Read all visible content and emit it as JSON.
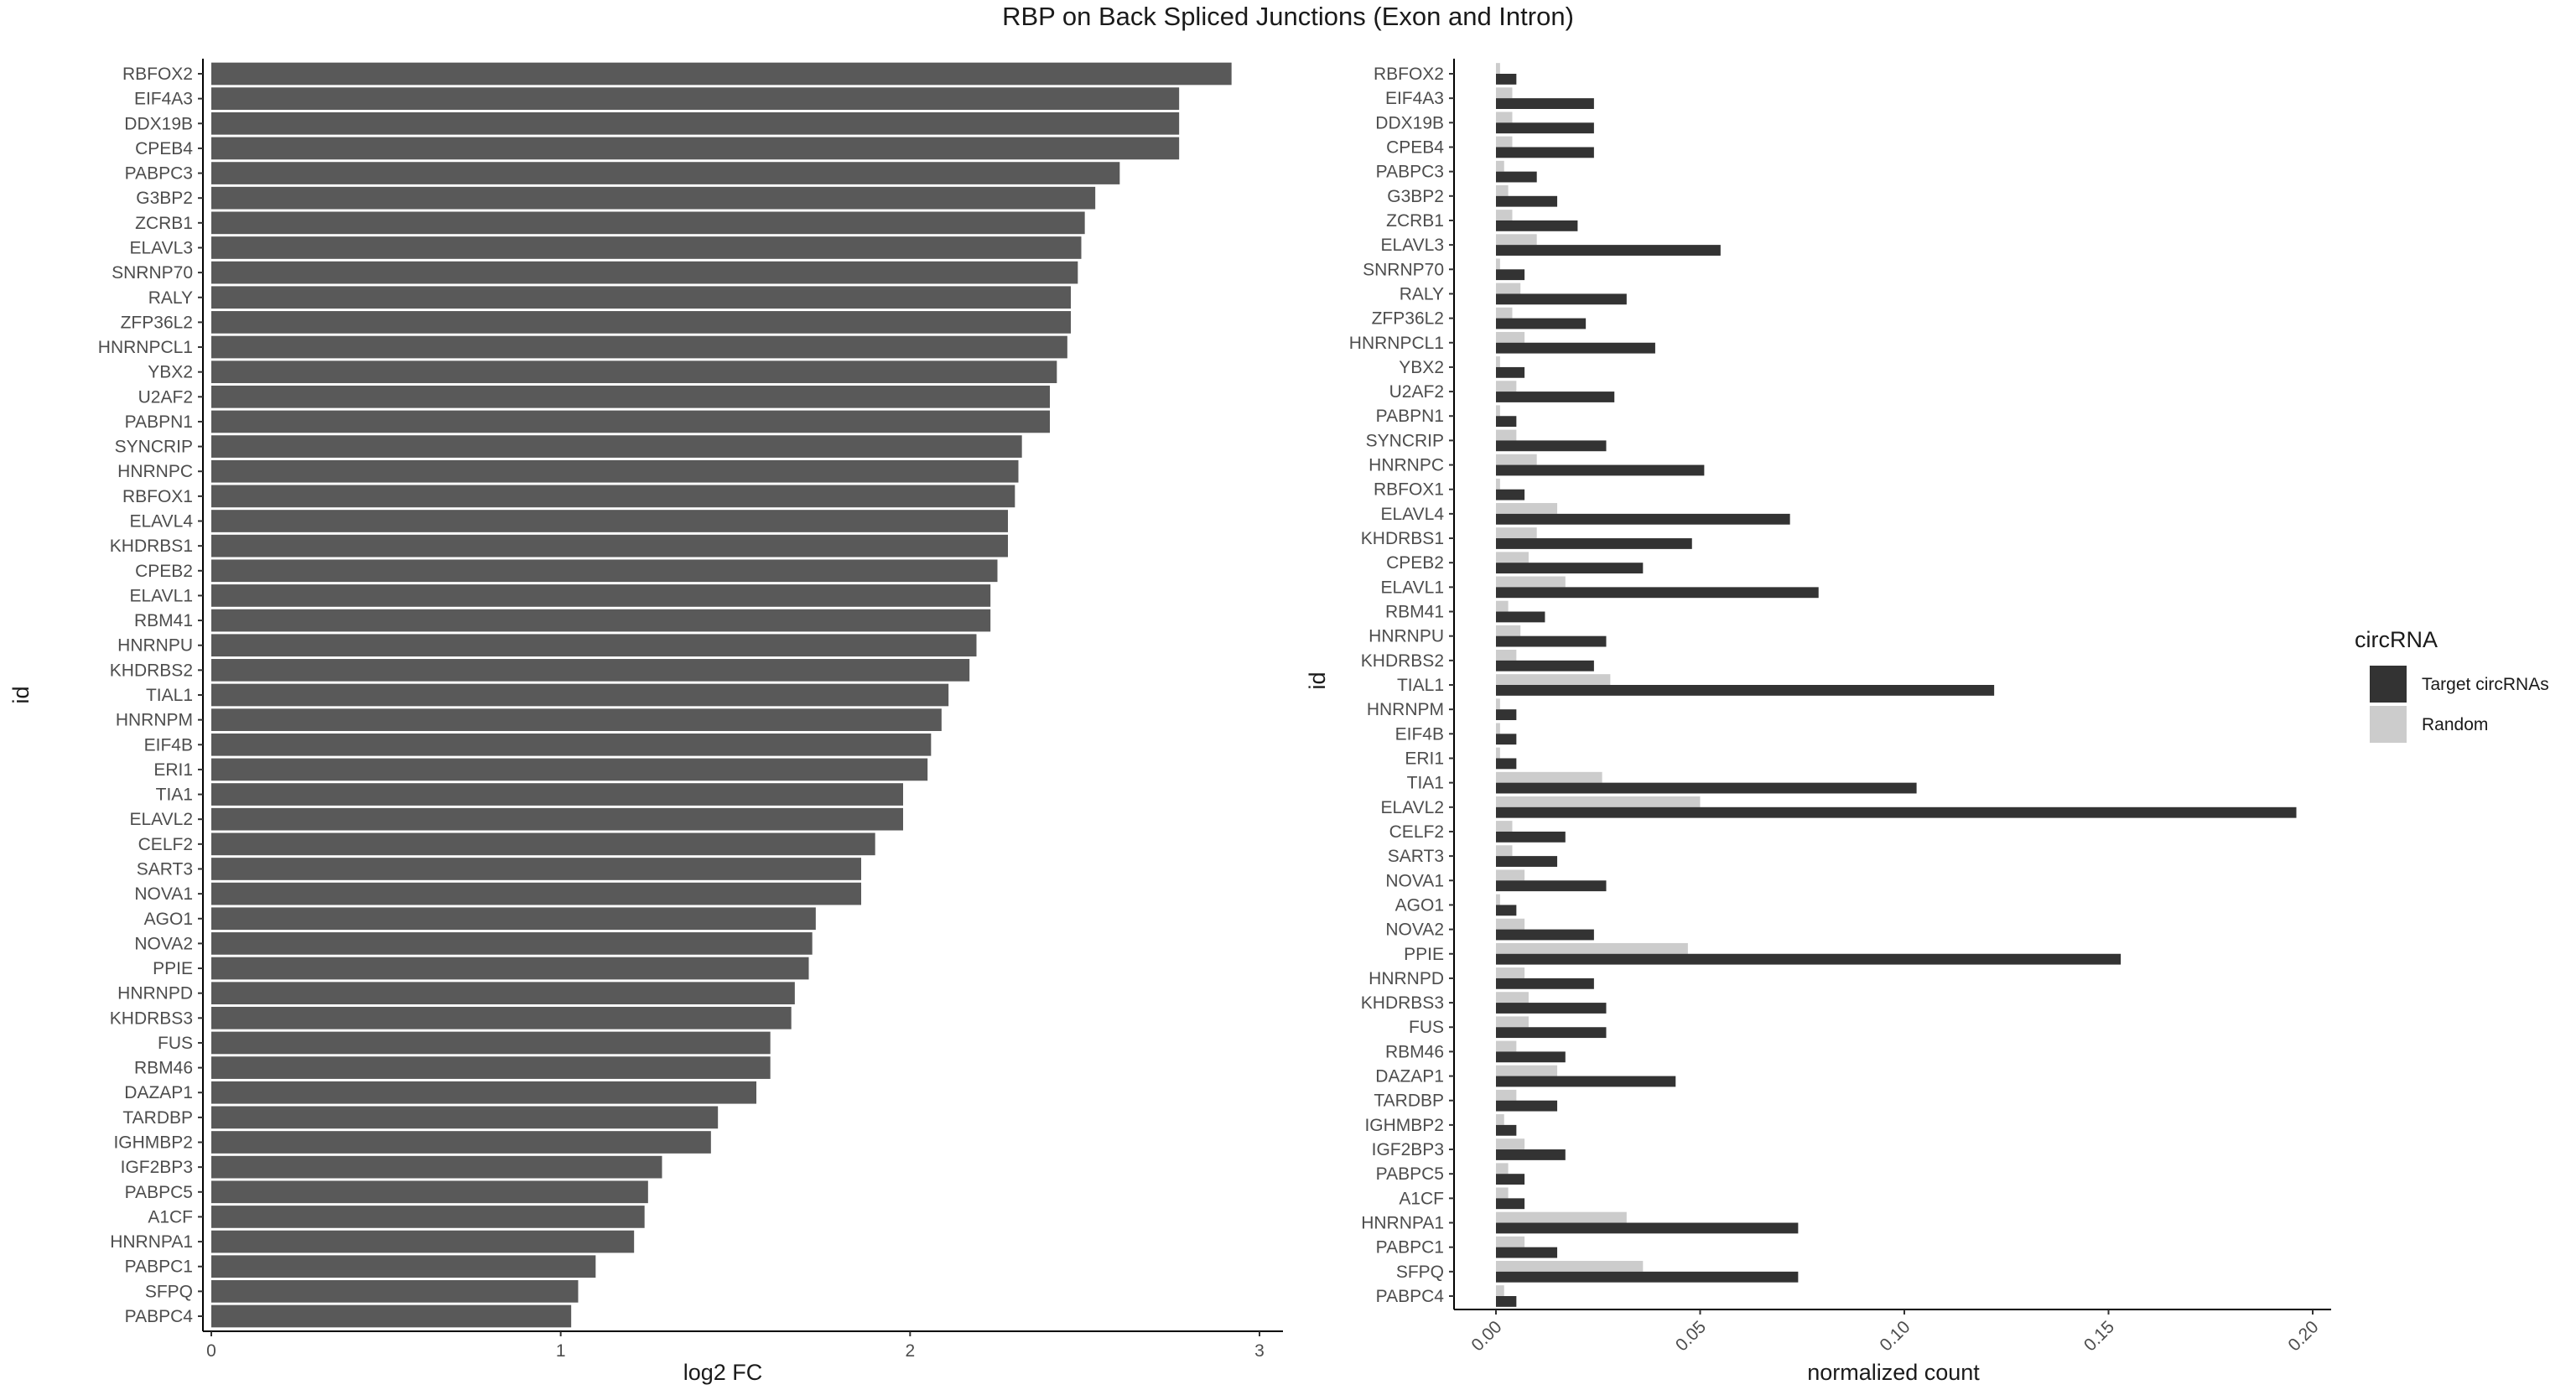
{
  "title": "RBP on Back Spliced Junctions (Exon and Intron)",
  "chart_data": [
    {
      "type": "bar",
      "orientation": "horizontal",
      "xlabel": "log2 FC",
      "ylabel": "id",
      "xlim": [
        0,
        3
      ],
      "xticks": [
        "0",
        "1",
        "2",
        "3"
      ],
      "bar_color": "#595959",
      "categories": [
        "RBFOX2",
        "EIF4A3",
        "DDX19B",
        "CPEB4",
        "PABPC3",
        "G3BP2",
        "ZCRB1",
        "ELAVL3",
        "SNRNP70",
        "RALY",
        "ZFP36L2",
        "HNRNPCL1",
        "YBX2",
        "U2AF2",
        "PABPN1",
        "SYNCRIP",
        "HNRNPC",
        "RBFOX1",
        "ELAVL4",
        "KHDRBS1",
        "CPEB2",
        "ELAVL1",
        "RBM41",
        "HNRNPU",
        "KHDRBS2",
        "TIAL1",
        "HNRNPM",
        "EIF4B",
        "ERI1",
        "TIA1",
        "ELAVL2",
        "CELF2",
        "SART3",
        "NOVA1",
        "AGO1",
        "NOVA2",
        "PPIE",
        "HNRNPD",
        "KHDRBS3",
        "FUS",
        "RBM46",
        "DAZAP1",
        "TARDBP",
        "IGHMBP2",
        "IGF2BP3",
        "PABPC5",
        "A1CF",
        "HNRNPA1",
        "PABPC1",
        "SFPQ",
        "PABPC4"
      ],
      "values": [
        2.92,
        2.77,
        2.77,
        2.77,
        2.6,
        2.53,
        2.5,
        2.49,
        2.48,
        2.46,
        2.46,
        2.45,
        2.42,
        2.4,
        2.4,
        2.32,
        2.31,
        2.3,
        2.28,
        2.28,
        2.25,
        2.23,
        2.23,
        2.19,
        2.17,
        2.11,
        2.09,
        2.06,
        2.05,
        1.98,
        1.98,
        1.9,
        1.86,
        1.86,
        1.73,
        1.72,
        1.71,
        1.67,
        1.66,
        1.6,
        1.6,
        1.56,
        1.45,
        1.43,
        1.29,
        1.25,
        1.24,
        1.21,
        1.1,
        1.05,
        1.03
      ]
    },
    {
      "type": "bar",
      "orientation": "horizontal",
      "grouped": true,
      "xlabel": "normalized count",
      "ylabel": "id",
      "xlim": [
        0,
        0.2
      ],
      "xticks": [
        "0.00",
        "0.05",
        "0.10",
        "0.15",
        "0.20"
      ],
      "legend_title": "circRNA",
      "legend_position": "right",
      "categories": [
        "RBFOX2",
        "EIF4A3",
        "DDX19B",
        "CPEB4",
        "PABPC3",
        "G3BP2",
        "ZCRB1",
        "ELAVL3",
        "SNRNP70",
        "RALY",
        "ZFP36L2",
        "HNRNPCL1",
        "YBX2",
        "U2AF2",
        "PABPN1",
        "SYNCRIP",
        "HNRNPC",
        "RBFOX1",
        "ELAVL4",
        "KHDRBS1",
        "CPEB2",
        "ELAVL1",
        "RBM41",
        "HNRNPU",
        "KHDRBS2",
        "TIAL1",
        "HNRNPM",
        "EIF4B",
        "ERI1",
        "TIA1",
        "ELAVL2",
        "CELF2",
        "SART3",
        "NOVA1",
        "AGO1",
        "NOVA2",
        "PPIE",
        "HNRNPD",
        "KHDRBS3",
        "FUS",
        "RBM46",
        "DAZAP1",
        "TARDBP",
        "IGHMBP2",
        "IGF2BP3",
        "PABPC5",
        "A1CF",
        "HNRNPA1",
        "PABPC1",
        "SFPQ",
        "PABPC4"
      ],
      "series": [
        {
          "name": "Target circRNAs",
          "color": "#333333",
          "values": [
            0.005,
            0.024,
            0.024,
            0.024,
            0.01,
            0.015,
            0.02,
            0.055,
            0.007,
            0.032,
            0.022,
            0.039,
            0.007,
            0.029,
            0.005,
            0.027,
            0.051,
            0.007,
            0.072,
            0.048,
            0.036,
            0.079,
            0.012,
            0.027,
            0.024,
            0.122,
            0.005,
            0.005,
            0.005,
            0.103,
            0.196,
            0.017,
            0.015,
            0.027,
            0.005,
            0.024,
            0.153,
            0.024,
            0.027,
            0.027,
            0.017,
            0.044,
            0.015,
            0.005,
            0.017,
            0.007,
            0.007,
            0.074,
            0.015,
            0.074,
            0.005
          ]
        },
        {
          "name": "Random",
          "color": "#cccccc",
          "values": [
            0.001,
            0.004,
            0.004,
            0.004,
            0.002,
            0.003,
            0.004,
            0.01,
            0.001,
            0.006,
            0.004,
            0.007,
            0.001,
            0.005,
            0.001,
            0.005,
            0.01,
            0.001,
            0.015,
            0.01,
            0.008,
            0.017,
            0.003,
            0.006,
            0.005,
            0.028,
            0.001,
            0.001,
            0.001,
            0.026,
            0.05,
            0.004,
            0.004,
            0.007,
            0.001,
            0.007,
            0.047,
            0.007,
            0.008,
            0.008,
            0.005,
            0.015,
            0.005,
            0.002,
            0.007,
            0.003,
            0.003,
            0.032,
            0.007,
            0.036,
            0.002
          ]
        }
      ]
    }
  ]
}
